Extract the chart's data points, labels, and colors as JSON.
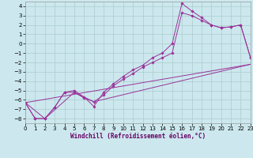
{
  "background_color": "#cce8ee",
  "grid_color": "#aacccc",
  "line_color": "#993399",
  "xlim": [
    0,
    23
  ],
  "ylim": [
    -8.5,
    4.5
  ],
  "yticks": [
    -8,
    -7,
    -6,
    -5,
    -4,
    -3,
    -2,
    -1,
    0,
    1,
    2,
    3,
    4
  ],
  "xticks": [
    0,
    1,
    2,
    3,
    4,
    5,
    6,
    7,
    8,
    9,
    10,
    11,
    12,
    13,
    14,
    15,
    16,
    17,
    18,
    19,
    20,
    21,
    22,
    23
  ],
  "xlabel": "Windchill (Refroidissement éolien,°C)",
  "curve1_x": [
    0,
    1,
    2,
    3,
    4,
    5,
    6,
    7,
    8,
    9,
    10,
    11,
    12,
    13,
    14,
    15,
    16,
    17,
    18,
    19,
    20,
    21,
    22,
    23
  ],
  "curve1_y": [
    -6.3,
    -8.0,
    -8.0,
    -6.8,
    -5.2,
    -5.0,
    -5.7,
    -6.7,
    -5.2,
    -4.3,
    -3.5,
    -2.8,
    -2.3,
    -1.5,
    -1.0,
    0.0,
    4.3,
    3.5,
    2.8,
    2.0,
    1.7,
    1.8,
    2.0,
    -1.5
  ],
  "curve2_x": [
    0,
    1,
    2,
    3,
    4,
    5,
    6,
    7,
    8,
    9,
    10,
    11,
    12,
    13,
    14,
    15,
    16,
    17,
    18,
    19,
    20,
    21,
    22,
    23
  ],
  "curve2_y": [
    -6.3,
    -8.0,
    -8.0,
    -6.8,
    -5.2,
    -5.2,
    -5.8,
    -6.2,
    -5.5,
    -4.5,
    -3.8,
    -3.2,
    -2.5,
    -2.0,
    -1.5,
    -1.0,
    3.3,
    3.0,
    2.5,
    2.0,
    1.7,
    1.8,
    2.0,
    -1.5
  ],
  "line3_x": [
    0,
    2,
    5,
    7,
    23
  ],
  "line3_y": [
    -6.3,
    -8.0,
    -5.2,
    -6.2,
    -2.2
  ],
  "line4_x": [
    0,
    23
  ],
  "line4_y": [
    -6.3,
    -2.2
  ],
  "tick_fontsize": 5.0,
  "xlabel_fontsize": 5.5
}
